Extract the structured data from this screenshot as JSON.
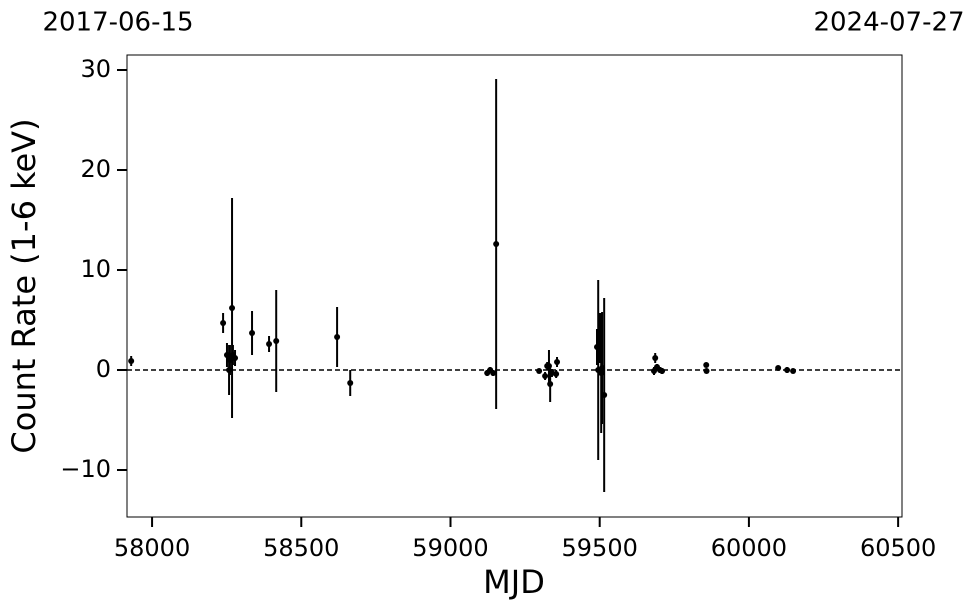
{
  "chart_data": {
    "type": "errorbar",
    "xlabel": "MJD",
    "ylabel": "Count Rate (1-6 keV)",
    "top_labels": [
      "2017-06-15",
      "2024-07-27"
    ],
    "xlim": [
      57916,
      60513
    ],
    "ylim": [
      -14.7,
      31.5
    ],
    "xticks": [
      58000,
      58500,
      59000,
      59500,
      60000,
      60500
    ],
    "yticks": [
      {
        "value": -10,
        "label": "−10"
      },
      0,
      10,
      20,
      30
    ],
    "hline": 0,
    "series": [
      {
        "color": "#000000",
        "x": [
          57930,
          58238,
          58251,
          58258,
          58261,
          58268,
          58271,
          58278,
          58335,
          58392,
          58416,
          58620,
          58664,
          59123,
          59133,
          59143,
          59153,
          59297,
          59317,
          59324,
          59330,
          59334,
          59340,
          59354,
          59357,
          59491,
          59495,
          59501,
          59505,
          59508,
          59515,
          59682,
          59686,
          59692,
          59702,
          59709,
          59857,
          59858,
          60098,
          60128,
          60148
        ],
        "values": [
          0.9,
          4.7,
          1.5,
          0.0,
          1.0,
          6.2,
          1.5,
          1.2,
          3.7,
          2.6,
          2.9,
          3.3,
          -1.3,
          -0.3,
          0.0,
          -0.3,
          12.6,
          -0.1,
          -0.6,
          0.4,
          0.4,
          -1.4,
          -0.3,
          -0.4,
          0.8,
          2.3,
          0.0,
          3.2,
          -0.3,
          0.2,
          -2.5,
          -0.1,
          1.2,
          0.3,
          0.0,
          -0.1,
          0.5,
          -0.1,
          0.2,
          0.0,
          -0.1
        ],
        "errors": [
          0.5,
          1.0,
          1.2,
          2.5,
          1.5,
          11.0,
          1.0,
          0.8,
          2.2,
          0.8,
          5.1,
          3.0,
          1.3,
          0.3,
          0.3,
          0.3,
          16.5,
          0.2,
          0.4,
          0.4,
          1.6,
          1.8,
          0.4,
          0.4,
          0.5,
          1.8,
          9.0,
          2.5,
          6.0,
          5.6,
          9.7,
          0.4,
          0.5,
          0.3,
          0.3,
          0.3,
          0.2,
          0.1,
          0.1,
          0.3,
          0.2
        ]
      }
    ]
  }
}
